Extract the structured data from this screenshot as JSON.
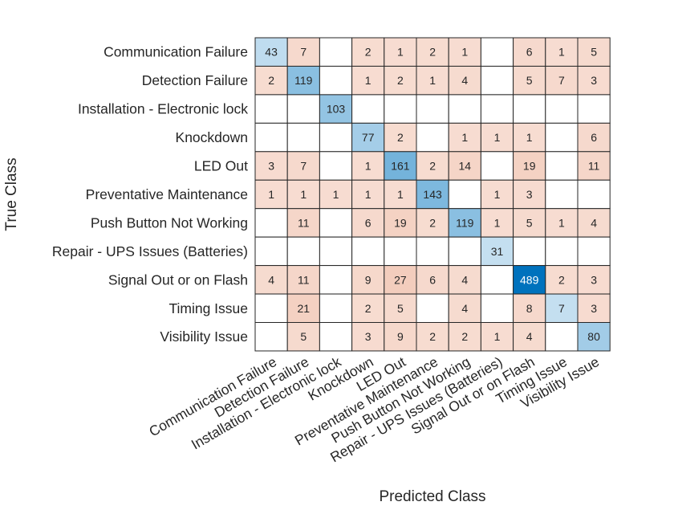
{
  "chart_data": {
    "type": "heatmap",
    "subtype": "confusion_matrix",
    "xlabel": "Predicted Class",
    "ylabel": "True Class",
    "classes": [
      "Communication Failure",
      "Detection Failure",
      "Installation - Electronic lock",
      "Knockdown",
      "LED Out",
      "Preventative Maintenance",
      "Push Button Not Working",
      "Repair - UPS Issues (Batteries)",
      "Signal Out or on Flash",
      "Timing Issue",
      "Visibility Issue"
    ],
    "matrix": [
      [
        43,
        7,
        0,
        2,
        1,
        2,
        1,
        0,
        6,
        1,
        5
      ],
      [
        2,
        119,
        0,
        1,
        2,
        1,
        4,
        0,
        5,
        7,
        3
      ],
      [
        0,
        0,
        103,
        0,
        0,
        0,
        0,
        0,
        0,
        0,
        0
      ],
      [
        0,
        0,
        0,
        77,
        2,
        0,
        1,
        1,
        1,
        0,
        6
      ],
      [
        3,
        7,
        0,
        1,
        161,
        2,
        14,
        0,
        19,
        0,
        11
      ],
      [
        1,
        1,
        1,
        1,
        1,
        143,
        0,
        1,
        3,
        0,
        0
      ],
      [
        0,
        11,
        0,
        6,
        19,
        2,
        119,
        1,
        5,
        1,
        4
      ],
      [
        0,
        0,
        0,
        0,
        0,
        0,
        0,
        31,
        0,
        0,
        0
      ],
      [
        4,
        11,
        0,
        9,
        27,
        6,
        4,
        0,
        489,
        2,
        3
      ],
      [
        0,
        21,
        0,
        2,
        5,
        0,
        4,
        0,
        8,
        7,
        3
      ],
      [
        0,
        5,
        0,
        3,
        9,
        2,
        2,
        1,
        4,
        0,
        80
      ]
    ],
    "colors": {
      "diagonal_max": "#0072BD",
      "diagonal_min": "#C4DFF0",
      "offdiag_max": "#F3CDBD",
      "offdiag_min": "#F7DDD2",
      "grid": "#262626"
    }
  }
}
